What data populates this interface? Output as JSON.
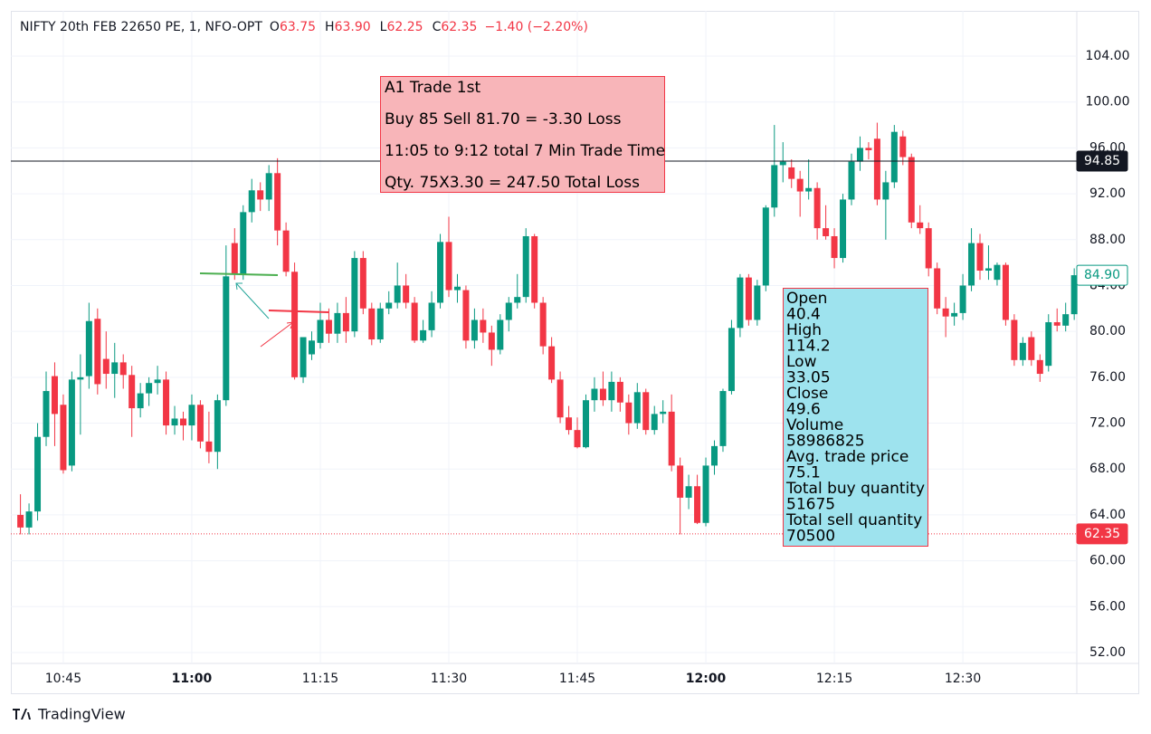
{
  "chart_data": {
    "type": "candlestick",
    "legend_header": {
      "symbol": "NIFTY 20th FEB 22650 PE, 1, NFO-OPT",
      "ohlc": [
        {
          "label": "O",
          "value": "63.75"
        },
        {
          "label": "H",
          "value": "63.90"
        },
        {
          "label": "L",
          "value": "62.25"
        },
        {
          "label": "C",
          "value": "62.35"
        }
      ],
      "change": "−1.40 (−2.20%)"
    },
    "up_color": "#089981",
    "down_color": "#f23645",
    "xlim": [
      -1.12,
      123.3
    ],
    "xticks": [
      {
        "value": 5,
        "label": "10:45"
      },
      {
        "value": 20,
        "label": "11:00",
        "bold": true
      },
      {
        "value": 35,
        "label": "11:15"
      },
      {
        "value": 50,
        "label": "11:30"
      },
      {
        "value": 65,
        "label": "11:45"
      },
      {
        "value": 80,
        "label": "12:00",
        "bold": true
      },
      {
        "value": 95,
        "label": "12:15"
      },
      {
        "value": 110,
        "label": "12:30"
      }
    ],
    "ylim": [
      51.05,
      107.95
    ],
    "yticks": [
      {
        "value": 52,
        "label": "52.00"
      },
      {
        "value": 56,
        "label": "56.00"
      },
      {
        "value": 60,
        "label": "60.00"
      },
      {
        "value": 64,
        "label": "64.00"
      },
      {
        "value": 68,
        "label": "68.00"
      },
      {
        "value": 72,
        "label": "72.00"
      },
      {
        "value": 76,
        "label": "76.00"
      },
      {
        "value": 80,
        "label": "80.00"
      },
      {
        "value": 84,
        "label": "84.00"
      },
      {
        "value": 88,
        "label": "88.00"
      },
      {
        "value": 92,
        "label": "92.00"
      },
      {
        "value": 96,
        "label": "96.00"
      },
      {
        "value": 100,
        "label": "100.00"
      },
      {
        "value": 104,
        "label": "104.00"
      }
    ],
    "grid": true,
    "ohlc": [
      [
        64.0,
        65.8,
        62.3,
        62.9
      ],
      [
        62.9,
        65.0,
        62.3,
        64.3
      ],
      [
        64.3,
        72.0,
        63.5,
        70.8
      ],
      [
        70.8,
        76.5,
        70.0,
        74.8
      ],
      [
        76.1,
        77.3,
        70.0,
        72.8
      ],
      [
        73.6,
        74.5,
        67.6,
        67.9
      ],
      [
        68.3,
        76.5,
        67.8,
        75.8
      ],
      [
        75.8,
        78.0,
        71.0,
        76.0
      ],
      [
        76.1,
        82.5,
        75.0,
        80.9
      ],
      [
        81.1,
        82.0,
        74.5,
        75.4
      ],
      [
        77.6,
        80.0,
        75.0,
        76.3
      ],
      [
        76.3,
        79.0,
        74.2,
        77.3
      ],
      [
        77.3,
        78.0,
        75.0,
        76.2
      ],
      [
        76.2,
        77.0,
        70.8,
        73.3
      ],
      [
        73.3,
        75.5,
        72.5,
        74.6
      ],
      [
        74.6,
        76.0,
        73.5,
        75.5
      ],
      [
        75.5,
        77.0,
        74.5,
        75.8
      ],
      [
        75.8,
        76.5,
        71.0,
        71.8
      ],
      [
        71.8,
        73.5,
        71.0,
        72.4
      ],
      [
        72.4,
        73.0,
        70.5,
        71.8
      ],
      [
        71.8,
        74.5,
        70.5,
        73.6
      ],
      [
        73.6,
        74.0,
        69.8,
        70.4
      ],
      [
        70.4,
        73.0,
        68.5,
        69.5
      ],
      [
        69.5,
        74.5,
        68.0,
        74.0
      ],
      [
        74.0,
        87.5,
        73.5,
        84.8
      ],
      [
        87.7,
        89.0,
        84.5,
        85.0
      ],
      [
        85.0,
        91.0,
        84.5,
        90.4
      ],
      [
        90.4,
        93.3,
        89.5,
        92.3
      ],
      [
        92.3,
        93.0,
        90.5,
        91.5
      ],
      [
        91.5,
        94.5,
        90.5,
        93.8
      ],
      [
        93.8,
        95.1,
        87.5,
        88.8
      ],
      [
        88.8,
        89.5,
        84.8,
        85.2
      ],
      [
        85.2,
        86.0,
        75.8,
        76.0
      ],
      [
        76.0,
        79.5,
        75.5,
        79.5
      ],
      [
        78.0,
        80.0,
        77.5,
        79.2
      ],
      [
        79.0,
        82.5,
        78.5,
        81.0
      ],
      [
        81.0,
        82.0,
        79.0,
        79.8
      ],
      [
        79.8,
        82.5,
        79.0,
        81.6
      ],
      [
        81.6,
        83.0,
        79.0,
        80.0
      ],
      [
        80.0,
        87.0,
        79.5,
        86.4
      ],
      [
        86.4,
        87.0,
        81.5,
        82.0
      ],
      [
        82.0,
        82.5,
        78.8,
        79.3
      ],
      [
        79.3,
        82.5,
        79.0,
        82.0
      ],
      [
        82.0,
        83.5,
        81.5,
        82.5
      ],
      [
        82.5,
        86.0,
        82.0,
        84.0
      ],
      [
        84.0,
        85.0,
        82.0,
        82.5
      ],
      [
        82.5,
        83.0,
        79.0,
        79.2
      ],
      [
        79.2,
        81.0,
        79.0,
        80.1
      ],
      [
        80.1,
        83.5,
        79.5,
        82.5
      ],
      [
        82.5,
        88.5,
        82.0,
        87.8
      ],
      [
        87.8,
        90.0,
        83.0,
        83.6
      ],
      [
        83.6,
        85.0,
        82.5,
        83.9
      ],
      [
        83.6,
        84.0,
        78.5,
        79.2
      ],
      [
        79.2,
        82.0,
        78.5,
        81.0
      ],
      [
        81.0,
        82.0,
        79.0,
        79.9
      ],
      [
        79.9,
        80.5,
        77.0,
        78.4
      ],
      [
        78.4,
        81.5,
        78.0,
        81.0
      ],
      [
        81.0,
        83.0,
        80.0,
        82.5
      ],
      [
        82.5,
        85.0,
        82.0,
        83.0
      ],
      [
        83.0,
        89.0,
        82.5,
        88.3
      ],
      [
        88.3,
        88.5,
        82.0,
        82.5
      ],
      [
        82.5,
        83.0,
        78.0,
        78.7
      ],
      [
        78.7,
        79.5,
        75.5,
        75.8
      ],
      [
        75.8,
        76.5,
        72.0,
        72.5
      ],
      [
        72.5,
        73.5,
        71.0,
        71.4
      ],
      [
        71.4,
        72.5,
        69.8,
        69.9
      ],
      [
        69.9,
        74.5,
        69.8,
        74.0
      ],
      [
        74.0,
        76.0,
        73.0,
        75.0
      ],
      [
        75.0,
        76.5,
        73.5,
        74.0
      ],
      [
        74.0,
        76.5,
        73.0,
        75.6
      ],
      [
        75.6,
        76.0,
        73.0,
        73.8
      ],
      [
        73.8,
        74.5,
        71.0,
        72.0
      ],
      [
        72.0,
        75.5,
        71.5,
        74.7
      ],
      [
        74.7,
        75.0,
        71.0,
        71.4
      ],
      [
        71.4,
        73.5,
        71.0,
        72.8
      ],
      [
        72.8,
        74.0,
        72.0,
        73.0
      ],
      [
        73.0,
        74.5,
        67.8,
        68.3
      ],
      [
        68.3,
        69.0,
        62.3,
        65.5
      ],
      [
        65.5,
        67.5,
        64.5,
        66.5
      ],
      [
        66.5,
        67.5,
        63.2,
        63.3
      ],
      [
        63.3,
        69.0,
        63.0,
        68.3
      ],
      [
        68.3,
        70.5,
        67.5,
        70.0
      ],
      [
        70.0,
        75.0,
        69.5,
        74.8
      ],
      [
        74.8,
        81.0,
        74.5,
        80.3
      ],
      [
        80.3,
        85.0,
        79.5,
        84.7
      ],
      [
        84.7,
        85.0,
        80.5,
        81.0
      ],
      [
        81.0,
        84.5,
        80.5,
        84.0
      ],
      [
        84.0,
        91.0,
        83.5,
        90.8
      ],
      [
        90.8,
        98.0,
        90.0,
        94.5
      ],
      [
        94.5,
        96.5,
        93.0,
        94.8
      ],
      [
        94.3,
        95.0,
        92.5,
        93.3
      ],
      [
        93.3,
        94.0,
        90.0,
        92.2
      ],
      [
        92.2,
        95.0,
        91.5,
        92.5
      ],
      [
        92.5,
        93.0,
        88.0,
        89.0
      ],
      [
        89.0,
        91.0,
        88.0,
        88.3
      ],
      [
        88.3,
        89.0,
        85.5,
        86.4
      ],
      [
        86.4,
        92.0,
        86.0,
        91.5
      ],
      [
        91.5,
        95.5,
        91.0,
        94.8
      ],
      [
        94.8,
        97.0,
        94.0,
        96.0
      ],
      [
        96.0,
        96.5,
        95.0,
        95.8
      ],
      [
        96.8,
        98.2,
        91.0,
        91.5
      ],
      [
        91.5,
        94.0,
        88.0,
        93.0
      ],
      [
        93.0,
        98.0,
        92.5,
        97.4
      ],
      [
        97.0,
        97.5,
        94.5,
        95.2
      ],
      [
        95.2,
        95.5,
        89.0,
        89.5
      ],
      [
        89.5,
        91.0,
        88.5,
        89.0
      ],
      [
        89.0,
        89.5,
        84.8,
        85.5
      ],
      [
        85.5,
        86.0,
        81.5,
        82.0
      ],
      [
        82.0,
        83.0,
        79.5,
        81.3
      ],
      [
        81.3,
        82.5,
        80.5,
        81.6
      ],
      [
        81.6,
        85.0,
        81.0,
        84.0
      ],
      [
        84.0,
        89.0,
        83.5,
        87.7
      ],
      [
        87.7,
        88.5,
        84.5,
        85.3
      ],
      [
        85.3,
        87.5,
        84.5,
        85.5
      ],
      [
        84.5,
        86.0,
        84.0,
        85.8
      ],
      [
        85.8,
        86.0,
        80.5,
        81.0
      ],
      [
        81.0,
        81.5,
        77.0,
        77.5
      ],
      [
        77.5,
        79.5,
        77.0,
        79.0
      ],
      [
        79.5,
        80.0,
        77.0,
        77.5
      ],
      [
        77.5,
        78.0,
        75.6,
        76.3
      ],
      [
        77.0,
        81.5,
        76.5,
        80.8
      ],
      [
        80.8,
        82.0,
        80.0,
        80.5
      ],
      [
        80.5,
        82.5,
        80.0,
        81.5
      ],
      [
        81.5,
        85.5,
        81.0,
        84.9
      ]
    ],
    "price_lines": [
      {
        "value": 94.85,
        "label": "94.85",
        "color": "#131722",
        "line": "solid",
        "filled": true
      },
      {
        "value": 62.35,
        "label": "62.35",
        "color": "#f23645",
        "line": "dotted",
        "filled": true
      },
      {
        "value": 84.9,
        "label": "84.90",
        "color": "#089981",
        "line": "none",
        "filled": false
      }
    ],
    "annotations": [
      {
        "lines": [
          "A1 Trade 1st",
          "Buy 85 Sell 81.70 = -3.30 Loss",
          "11:05 to 9:12 total  7 Min Trade Time",
          "Qty. 75X3.30 =  247.50 Total Loss"
        ]
      }
    ],
    "info_box": [
      {
        "label": "Open",
        "value": "40.4"
      },
      {
        "label": "High",
        "value": "114.2"
      },
      {
        "label": "Low",
        "value": "33.05"
      },
      {
        "label": "Close",
        "value": "49.6"
      },
      {
        "label": "Volume",
        "value": "58986825"
      },
      {
        "label": "Avg. trade price",
        "value": "75.1"
      },
      {
        "label": "Total buy quantity",
        "value": "51675"
      },
      {
        "label": "Total sell quantity",
        "value": "70500"
      }
    ],
    "brand": "TradingView"
  }
}
